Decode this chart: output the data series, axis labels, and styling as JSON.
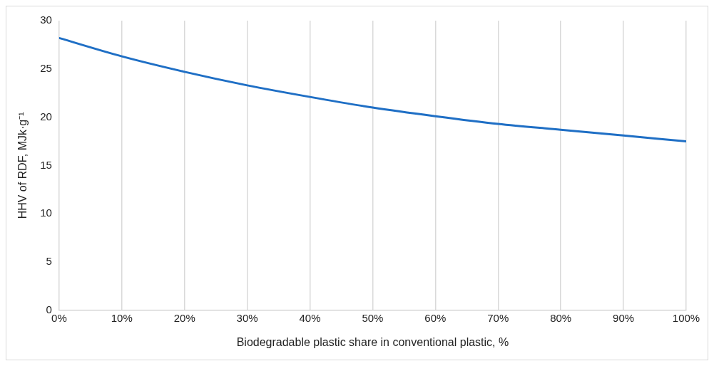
{
  "chart_data": {
    "type": "line",
    "xlabel": "Biodegradable plastic share in conventional plastic, %",
    "ylabel": "HHV of RDF, MJk·g⁻¹",
    "x": [
      0,
      10,
      20,
      30,
      40,
      50,
      60,
      70,
      80,
      90,
      100
    ],
    "series": [
      {
        "color": "#1f6fc5",
        "values": [
          28.2,
          26.3,
          24.7,
          23.3,
          22.1,
          21.0,
          20.1,
          19.3,
          18.7,
          18.1,
          17.5
        ]
      }
    ],
    "xlim": [
      0,
      100
    ],
    "xticks": [
      {
        "value": 0,
        "label": "0%"
      },
      {
        "value": 10,
        "label": "10%"
      },
      {
        "value": 20,
        "label": "20%"
      },
      {
        "value": 30,
        "label": "30%"
      },
      {
        "value": 40,
        "label": "40%"
      },
      {
        "value": 50,
        "label": "50%"
      },
      {
        "value": 60,
        "label": "60%"
      },
      {
        "value": 70,
        "label": "70%"
      },
      {
        "value": 80,
        "label": "80%"
      },
      {
        "value": 90,
        "label": "90%"
      },
      {
        "value": 100,
        "label": "100%"
      }
    ],
    "ylim": [
      0,
      30
    ],
    "yticks": [
      0,
      5,
      10,
      15,
      20,
      25,
      30
    ],
    "grid": "x",
    "marker": "none",
    "line_style": "solid"
  }
}
